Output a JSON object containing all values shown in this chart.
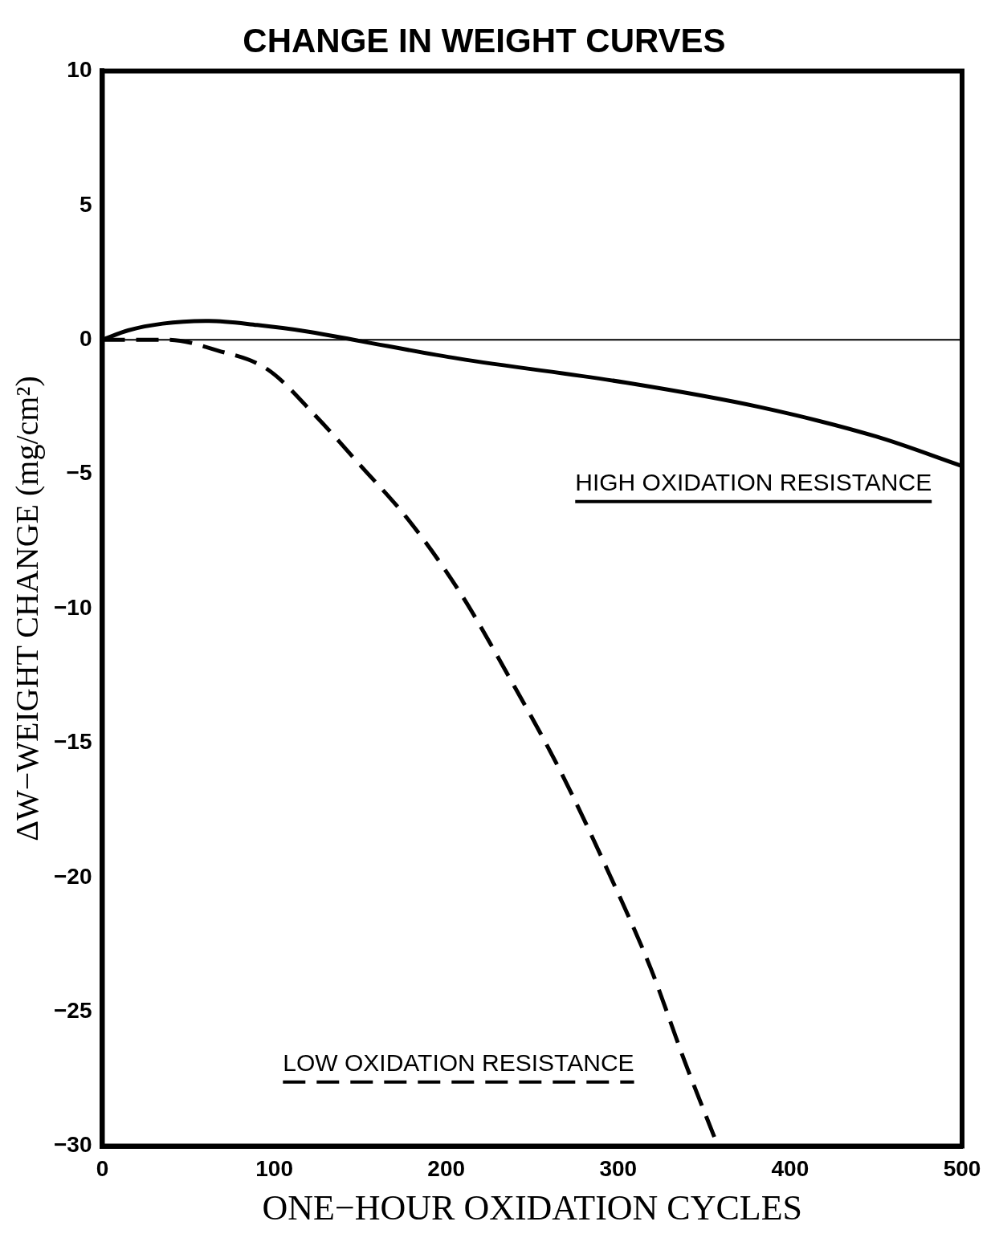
{
  "chart_data": {
    "type": "line",
    "title": "CHANGE IN WEIGHT CURVES",
    "xlabel": "ONE−HOUR OXIDATION CYCLES",
    "ylabel": "ΔW−WEIGHT CHANGE (mg/cm²)",
    "xlim": [
      0,
      500
    ],
    "xticks": [
      0,
      100,
      200,
      300,
      400,
      500
    ],
    "ylim": [
      -30,
      10
    ],
    "yticks": [
      -30,
      -25,
      -20,
      -15,
      -10,
      -5,
      0,
      5,
      10
    ],
    "grid": false,
    "legend": false,
    "marker": "none",
    "ref_lines": [
      {
        "axis": "y",
        "value": 0,
        "color": "#000000"
      }
    ],
    "series": [
      {
        "name": "HIGH OXIDATION RESISTANCE",
        "color": "#000000",
        "line_style": "solid",
        "x": [
          0,
          15,
          35,
          62,
          90,
          120,
          150,
          207,
          305,
          382,
          450,
          500
        ],
        "values": [
          0,
          0.35,
          0.6,
          0.7,
          0.55,
          0.3,
          -0.05,
          -0.7,
          -1.6,
          -2.5,
          -3.6,
          -4.7
        ]
      },
      {
        "name": "LOW OXIDATION RESISTANCE",
        "color": "#000000",
        "line_style": "dashed",
        "x": [
          0,
          38,
          67,
          96,
          125,
          149,
          178,
          208,
          237,
          266,
          295,
          319,
          339,
          358
        ],
        "values": [
          0,
          0,
          -0.4,
          -1.1,
          -2.9,
          -4.6,
          -6.7,
          -9.4,
          -12.6,
          -16,
          -19.9,
          -23.4,
          -26.9,
          -30
        ]
      }
    ]
  }
}
